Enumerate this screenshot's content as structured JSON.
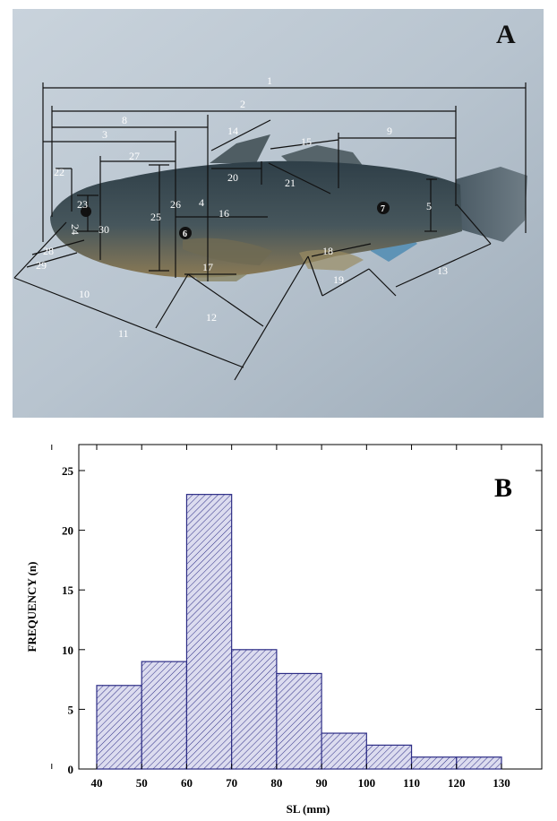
{
  "panel_a": {
    "letter": "A",
    "measurements": [
      {
        "id": "1"
      },
      {
        "id": "2"
      },
      {
        "id": "3"
      },
      {
        "id": "4"
      },
      {
        "id": "5"
      },
      {
        "id": "8"
      },
      {
        "id": "9"
      },
      {
        "id": "10"
      },
      {
        "id": "11"
      },
      {
        "id": "12"
      },
      {
        "id": "13"
      },
      {
        "id": "14"
      },
      {
        "id": "15"
      },
      {
        "id": "16"
      },
      {
        "id": "17"
      },
      {
        "id": "18"
      },
      {
        "id": "19"
      },
      {
        "id": "20"
      },
      {
        "id": "21"
      },
      {
        "id": "22"
      },
      {
        "id": "23"
      },
      {
        "id": "24"
      },
      {
        "id": "25"
      },
      {
        "id": "26"
      },
      {
        "id": "27"
      },
      {
        "id": "28"
      },
      {
        "id": "29"
      },
      {
        "id": "30"
      }
    ],
    "landmarks": [
      {
        "id": "6"
      },
      {
        "id": "7"
      }
    ]
  },
  "panel_b": {
    "letter": "B"
  },
  "chart_data": {
    "type": "bar",
    "title": "",
    "xlabel": "SL (mm)",
    "ylabel": "FREQUENCY (n)",
    "xlim": [
      30,
      130
    ],
    "ylim": [
      0,
      25
    ],
    "x_ticks": [
      40,
      50,
      60,
      70,
      80,
      90,
      100,
      110,
      120,
      130
    ],
    "y_ticks": [
      0,
      5,
      10,
      15,
      20,
      25
    ],
    "bins": [
      {
        "from": 40,
        "to": 50,
        "value": 7
      },
      {
        "from": 50,
        "to": 60,
        "value": 9
      },
      {
        "from": 60,
        "to": 70,
        "value": 23
      },
      {
        "from": 70,
        "to": 80,
        "value": 10
      },
      {
        "from": 80,
        "to": 90,
        "value": 8
      },
      {
        "from": 90,
        "to": 100,
        "value": 3
      },
      {
        "from": 100,
        "to": 110,
        "value": 2
      },
      {
        "from": 110,
        "to": 120,
        "value": 1
      },
      {
        "from": 120,
        "to": 130,
        "value": 1
      }
    ],
    "bar_fill": "#dcdcef",
    "bar_stroke": "#2d2d86",
    "grid": false,
    "legend": "none"
  }
}
